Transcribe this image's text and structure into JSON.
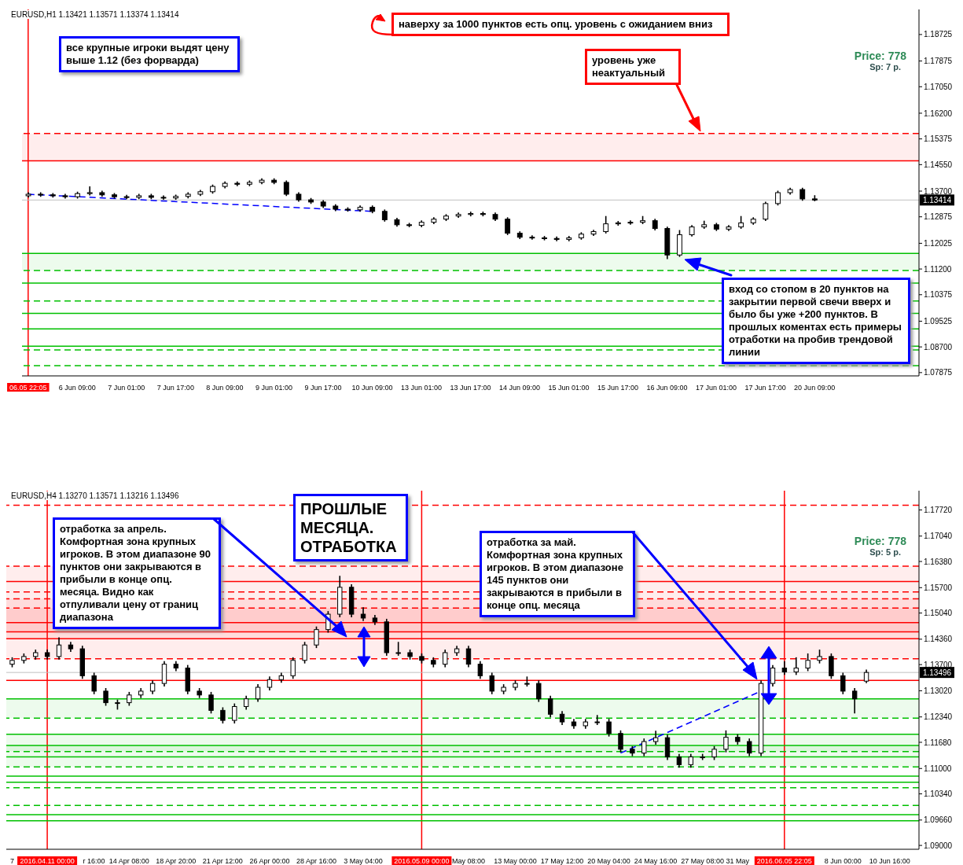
{
  "chart_data": [
    {
      "type": "candlestick",
      "title": "EURUSD,H1  1.13421 1.13571 1.13374 1.13414",
      "categories": [
        "06.05 22:05",
        null,
        null,
        null,
        "6 Jun 09:00",
        null,
        null,
        null,
        "7 Jun 01:00",
        null,
        null,
        null,
        "7 Jun 17:00",
        null,
        null,
        null,
        "8 Jun 09:00",
        null,
        null,
        null,
        "9 Jun 01:00",
        null,
        null,
        null,
        "9 Jun 17:00",
        null,
        null,
        null,
        "10 Jun 09:00",
        null,
        null,
        null,
        "13 Jun 01:00",
        null,
        null,
        null,
        "13 Jun 17:00",
        null,
        null,
        null,
        "14 Jun 09:00",
        null,
        null,
        null,
        "15 Jun 01:00",
        null,
        null,
        null,
        "15 Jun 17:00",
        null,
        null,
        null,
        "16 Jun 09:00",
        null,
        null,
        null,
        "17 Jun 01:00",
        null,
        null,
        null,
        "17 Jun 17:00",
        null,
        null,
        null,
        "20 Jun 09:00",
        null,
        null,
        null,
        null,
        null,
        null,
        null,
        null
      ],
      "ohlc": [
        [
          1.1355,
          1.1366,
          1.1349,
          1.136
        ],
        [
          1.136,
          1.1366,
          1.1352,
          1.1358
        ],
        [
          1.1358,
          1.1364,
          1.1349,
          1.1355
        ],
        [
          1.1355,
          1.1361,
          1.1346,
          1.1352
        ],
        [
          1.1352,
          1.1368,
          1.1346,
          1.1362
        ],
        [
          1.1362,
          1.1385,
          1.1356,
          1.1365
        ],
        [
          1.1365,
          1.1371,
          1.1352,
          1.1358
        ],
        [
          1.1358,
          1.1364,
          1.1346,
          1.1352
        ],
        [
          1.1352,
          1.1358,
          1.1344,
          1.135
        ],
        [
          1.135,
          1.1361,
          1.1344,
          1.1355
        ],
        [
          1.1355,
          1.1361,
          1.1344,
          1.135
        ],
        [
          1.135,
          1.1356,
          1.1342,
          1.1348
        ],
        [
          1.1348,
          1.1359,
          1.1342,
          1.1353
        ],
        [
          1.1353,
          1.1366,
          1.1347,
          1.136
        ],
        [
          1.136,
          1.1374,
          1.1354,
          1.1368
        ],
        [
          1.1368,
          1.1391,
          1.1362,
          1.1385
        ],
        [
          1.1385,
          1.1401,
          1.1379,
          1.1395
        ],
        [
          1.1395,
          1.1401,
          1.1386,
          1.1392
        ],
        [
          1.1392,
          1.1404,
          1.1386,
          1.1398
        ],
        [
          1.1398,
          1.1411,
          1.1392,
          1.1405
        ],
        [
          1.1405,
          1.1411,
          1.1392,
          1.1398
        ],
        [
          1.1398,
          1.1404,
          1.1354,
          1.136
        ],
        [
          1.136,
          1.1366,
          1.1336,
          1.1342
        ],
        [
          1.1342,
          1.1348,
          1.1329,
          1.1335
        ],
        [
          1.1335,
          1.1341,
          1.1316,
          1.1322
        ],
        [
          1.1322,
          1.1328,
          1.1306,
          1.1312
        ],
        [
          1.1312,
          1.1318,
          1.1304,
          1.131
        ],
        [
          1.131,
          1.1324,
          1.1304,
          1.1318
        ],
        [
          1.1318,
          1.1324,
          1.1299,
          1.1305
        ],
        [
          1.1305,
          1.1311,
          1.1272,
          1.1278
        ],
        [
          1.1278,
          1.1284,
          1.1256,
          1.1262
        ],
        [
          1.1262,
          1.1268,
          1.1254,
          1.126
        ],
        [
          1.126,
          1.1276,
          1.1254,
          1.127
        ],
        [
          1.127,
          1.1286,
          1.1264,
          1.128
        ],
        [
          1.128,
          1.1296,
          1.1274,
          1.129
        ],
        [
          1.129,
          1.1301,
          1.1284,
          1.1295
        ],
        [
          1.1295,
          1.1304,
          1.1289,
          1.1298
        ],
        [
          1.1298,
          1.1304,
          1.1289,
          1.1295
        ],
        [
          1.1295,
          1.1301,
          1.1274,
          1.128
        ],
        [
          1.128,
          1.1286,
          1.1229,
          1.1235
        ],
        [
          1.1235,
          1.1241,
          1.1216,
          1.1222
        ],
        [
          1.1222,
          1.1228,
          1.1214,
          1.122
        ],
        [
          1.122,
          1.1226,
          1.1212,
          1.1218
        ],
        [
          1.1218,
          1.1224,
          1.1209,
          1.1215
        ],
        [
          1.1215,
          1.1226,
          1.1209,
          1.122
        ],
        [
          1.122,
          1.1238,
          1.1214,
          1.1232
        ],
        [
          1.1232,
          1.1246,
          1.1226,
          1.124
        ],
        [
          1.124,
          1.129,
          1.1234,
          1.1265
        ],
        [
          1.1265,
          1.1274,
          1.1259,
          1.1268
        ],
        [
          1.1268,
          1.1276,
          1.1262,
          1.127
        ],
        [
          1.127,
          1.129,
          1.1264,
          1.1275
        ],
        [
          1.1275,
          1.1281,
          1.1244,
          1.125
        ],
        [
          1.125,
          1.1256,
          1.1152,
          1.1165
        ],
        [
          1.1165,
          1.1245,
          1.1159,
          1.123
        ],
        [
          1.123,
          1.1261,
          1.1224,
          1.1255
        ],
        [
          1.1255,
          1.1275,
          1.1249,
          1.1262
        ],
        [
          1.1262,
          1.1268,
          1.1242,
          1.1248
        ],
        [
          1.1248,
          1.1261,
          1.1242,
          1.1255
        ],
        [
          1.1255,
          1.129,
          1.1249,
          1.1268
        ],
        [
          1.1268,
          1.1286,
          1.1262,
          1.128
        ],
        [
          1.128,
          1.1336,
          1.1274,
          1.133
        ],
        [
          1.133,
          1.1371,
          1.1324,
          1.1365
        ],
        [
          1.1365,
          1.1381,
          1.1359,
          1.1375
        ],
        [
          1.1375,
          1.1381,
          1.1339,
          1.1345
        ],
        [
          1.1345,
          1.13571,
          1.13374,
          1.13414
        ],
        null,
        null,
        null,
        null,
        null,
        null,
        null,
        null
      ],
      "series": [
        {
          "type": "line",
          "color": "#0000ff",
          "line_style": "dashed",
          "values": [
            1.136,
            null,
            null,
            null,
            null,
            null,
            null,
            null,
            null,
            null,
            null,
            null,
            null,
            null,
            null,
            null,
            null,
            null,
            null,
            null,
            null,
            null,
            null,
            null,
            null,
            null,
            null,
            null,
            1.1305,
            null,
            null,
            null,
            null,
            null,
            null,
            null,
            null,
            null,
            null,
            null,
            null,
            null,
            null,
            null,
            null,
            null,
            null,
            null,
            null,
            null,
            null,
            null,
            null,
            null,
            null,
            null,
            null,
            null,
            null,
            null,
            null,
            null,
            null,
            null,
            null,
            null,
            null,
            null,
            null,
            null,
            null,
            null,
            null
          ]
        }
      ],
      "ylim": [
        1.0777,
        1.1953
      ],
      "yticks": [
        {
          "value": 1.18725,
          "label": "1.18725"
        },
        {
          "value": 1.17875,
          "label": "1.17875"
        },
        {
          "value": 1.1705,
          "label": "1.17050"
        },
        {
          "value": 1.162,
          "label": "1.16200"
        },
        {
          "value": 1.15375,
          "label": "1.15375"
        },
        {
          "value": 1.1455,
          "label": "1.14550"
        },
        {
          "value": 1.137,
          "label": "1.13700"
        },
        {
          "value": 1.12875,
          "label": "1.12875"
        },
        {
          "value": 1.12025,
          "label": "1.12025"
        },
        {
          "value": 1.112,
          "label": "1.11200"
        },
        {
          "value": 1.10375,
          "label": "1.10375"
        },
        {
          "value": 1.09525,
          "label": "1.09525"
        },
        {
          "value": 1.087,
          "label": "1.08700"
        },
        {
          "value": 1.07875,
          "label": "1.07875"
        }
      ],
      "bands": [
        {
          "axis": "y",
          "from": 1.1467,
          "to": 1.1555,
          "color": "#ff0000"
        },
        {
          "axis": "y",
          "from": 1.1115,
          "to": 1.117,
          "color": "#00c000"
        }
      ],
      "ref_lines": [
        {
          "axis": "x",
          "value": "06.05 22:05",
          "color": "#ff0000"
        },
        {
          "axis": "y",
          "value": 1.13414,
          "label": "1.13414",
          "color": "#c0c0c0"
        },
        {
          "axis": "y",
          "value": 1.1467,
          "color": "#ff0000",
          "line_style": "solid"
        },
        {
          "axis": "y",
          "value": 1.1555,
          "color": "#ff0000",
          "line_style": "dashed"
        },
        {
          "axis": "y",
          "value": 1.117,
          "color": "#00c000",
          "line_style": "solid"
        },
        {
          "axis": "y",
          "value": 1.1115,
          "color": "#00c000",
          "line_style": "dashed"
        },
        {
          "axis": "y",
          "value": 1.1075,
          "color": "#00c000",
          "line_style": "solid"
        },
        {
          "axis": "y",
          "value": 1.10175,
          "color": "#00c000",
          "line_style": "dashed"
        },
        {
          "axis": "y",
          "value": 1.09775,
          "color": "#00c000",
          "line_style": "solid"
        },
        {
          "axis": "y",
          "value": 1.09275,
          "color": "#00c000",
          "line_style": "solid"
        },
        {
          "axis": "y",
          "value": 1.0872,
          "color": "#00c000",
          "line_style": "solid"
        },
        {
          "axis": "y",
          "value": 1.086,
          "color": "#00c000",
          "line_style": "dashed"
        },
        {
          "axis": "y",
          "value": 1.081,
          "color": "#00c000",
          "line_style": "dashed"
        }
      ],
      "annotations": [
        "все крупные игроки выдят цену выше 1.12 (без форварда)",
        "наверху за 1000 пунктов есть опц. уровень с ожиданием вниз",
        "уровень уже неактуальный",
        "вход со стопом в 20 пунктов на закрытии первой свечи вверх и было бы уже +200 пунктов. В прошлых коментах есть примеры отработки на пробив трендовой линии",
        "Price: 778",
        "Sp: 7 p."
      ]
    },
    {
      "type": "candlestick",
      "title": "EURUSD,H4  1.13270 1.13571 1.13216 1.13496",
      "categories": [
        "7",
        null,
        null,
        "2016.04.11 00:00",
        null,
        null,
        null,
        "r 16:00",
        null,
        null,
        "14 Apr 08:00",
        null,
        null,
        null,
        "18 Apr 20:00",
        null,
        null,
        null,
        "21 Apr 12:00",
        null,
        null,
        null,
        "26 Apr 00:00",
        null,
        null,
        null,
        "28 Apr 16:00",
        null,
        null,
        null,
        "3 May 04:00",
        null,
        null,
        null,
        null,
        "2016.05.09 00:00",
        null,
        null,
        null,
        "May 08:00",
        null,
        null,
        null,
        "13 May 00:00",
        null,
        null,
        null,
        "17 May 12:00",
        null,
        null,
        null,
        "20 May 04:00",
        null,
        null,
        null,
        "24 May 16:00",
        null,
        null,
        null,
        "27 May 08:00",
        null,
        null,
        "31 May",
        null,
        null,
        null,
        "2016.06.05 22:05",
        null,
        null,
        null,
        null,
        "8 Jun 00:00",
        null,
        null,
        null,
        "10 Jun 16:00",
        null,
        null
      ],
      "ohlc": [
        [
          1.1371,
          1.1389,
          1.1363,
          1.1381
        ],
        [
          1.1381,
          1.1399,
          1.1373,
          1.1391
        ],
        [
          1.1391,
          1.1409,
          1.1383,
          1.1401
        ],
        [
          1.1401,
          1.1409,
          1.1383,
          1.1391
        ],
        [
          1.1391,
          1.1441,
          1.1383,
          1.1421
        ],
        [
          1.1421,
          1.1429,
          1.1403,
          1.1411
        ],
        [
          1.1411,
          1.1419,
          1.1333,
          1.1341
        ],
        [
          1.1341,
          1.1349,
          1.1293,
          1.1301
        ],
        [
          1.1301,
          1.1309,
          1.1263,
          1.1271
        ],
        [
          1.1271,
          1.1279,
          1.1253,
          1.1271
        ],
        [
          1.1271,
          1.1299,
          1.1263,
          1.1291
        ],
        [
          1.1291,
          1.1309,
          1.1283,
          1.1301
        ],
        [
          1.1301,
          1.1329,
          1.1293,
          1.1321
        ],
        [
          1.1321,
          1.1379,
          1.1313,
          1.1371
        ],
        [
          1.1371,
          1.1379,
          1.1353,
          1.1361
        ],
        [
          1.1361,
          1.1369,
          1.1293,
          1.1301
        ],
        [
          1.1301,
          1.1309,
          1.1283,
          1.1291
        ],
        [
          1.1291,
          1.1299,
          1.1243,
          1.1251
        ],
        [
          1.1251,
          1.1259,
          1.1217,
          1.1225
        ],
        [
          1.1225,
          1.1269,
          1.1217,
          1.1261
        ],
        [
          1.1261,
          1.1289,
          1.1253,
          1.1281
        ],
        [
          1.1281,
          1.1319,
          1.1273,
          1.1311
        ],
        [
          1.1311,
          1.1339,
          1.1303,
          1.1331
        ],
        [
          1.1331,
          1.1349,
          1.1323,
          1.1341
        ],
        [
          1.1341,
          1.1389,
          1.1333,
          1.1381
        ],
        [
          1.1381,
          1.1429,
          1.1373,
          1.1421
        ],
        [
          1.1421,
          1.1469,
          1.1413,
          1.1461
        ],
        [
          1.1461,
          1.1509,
          1.1453,
          1.1501
        ],
        [
          1.1501,
          1.1601,
          1.1493,
          1.1571
        ],
        [
          1.1571,
          1.1579,
          1.1493,
          1.1501
        ],
        [
          1.1501,
          1.1519,
          1.1483,
          1.1491
        ],
        [
          1.1491,
          1.1499,
          1.1473,
          1.1481
        ],
        [
          1.1481,
          1.1489,
          1.1393,
          1.1401
        ],
        [
          1.1401,
          1.1429,
          1.1393,
          1.1401
        ],
        [
          1.1401,
          1.1409,
          1.1383,
          1.1391
        ],
        [
          1.1391,
          1.1399,
          1.1373,
          1.1381
        ],
        [
          1.1381,
          1.1389,
          1.1363,
          1.1371
        ],
        [
          1.1371,
          1.1409,
          1.1363,
          1.1401
        ],
        [
          1.1401,
          1.1419,
          1.1393,
          1.1411
        ],
        [
          1.1411,
          1.1419,
          1.1363,
          1.1371
        ],
        [
          1.1371,
          1.1379,
          1.1333,
          1.1341
        ],
        [
          1.1341,
          1.1349,
          1.1293,
          1.1301
        ],
        [
          1.1301,
          1.1319,
          1.1293,
          1.1311
        ],
        [
          1.1311,
          1.1329,
          1.1303,
          1.1321
        ],
        [
          1.1321,
          1.1339,
          1.1313,
          1.1321
        ],
        [
          1.1321,
          1.1329,
          1.1273,
          1.1281
        ],
        [
          1.1281,
          1.1289,
          1.1233,
          1.1241
        ],
        [
          1.1241,
          1.1249,
          1.1213,
          1.1221
        ],
        [
          1.1221,
          1.1229,
          1.1203,
          1.1211
        ],
        [
          1.1211,
          1.1229,
          1.1203,
          1.1221
        ],
        [
          1.1221,
          1.1239,
          1.1213,
          1.1221
        ],
        [
          1.1221,
          1.1229,
          1.1183,
          1.1191
        ],
        [
          1.1191,
          1.1199,
          1.1142,
          1.115
        ],
        [
          1.115,
          1.1158,
          1.1132,
          1.114
        ],
        [
          1.114,
          1.1178,
          1.1132,
          1.117
        ],
        [
          1.117,
          1.1198,
          1.1162,
          1.118
        ],
        [
          1.118,
          1.1188,
          1.1122,
          1.113
        ],
        [
          1.113,
          1.1138,
          1.1102,
          1.111
        ],
        [
          1.111,
          1.1138,
          1.1102,
          1.113
        ],
        [
          1.113,
          1.1138,
          1.1122,
          1.113
        ],
        [
          1.113,
          1.1158,
          1.1122,
          1.115
        ],
        [
          1.115,
          1.1199,
          1.1142,
          1.1181
        ],
        [
          1.1181,
          1.1189,
          1.1162,
          1.117
        ],
        [
          1.117,
          1.1178,
          1.1132,
          1.114
        ],
        [
          1.114,
          1.1329,
          1.1132,
          1.1321
        ],
        [
          1.1321,
          1.1369,
          1.1313,
          1.1361
        ],
        [
          1.1361,
          1.1379,
          1.1343,
          1.1351
        ],
        [
          1.1351,
          1.1389,
          1.1343,
          1.1361
        ],
        [
          1.1361,
          1.1399,
          1.1353,
          1.1381
        ],
        [
          1.1381,
          1.1409,
          1.1373,
          1.1391
        ],
        [
          1.1391,
          1.1399,
          1.1333,
          1.1341
        ],
        [
          1.1341,
          1.1349,
          1.1293,
          1.1301
        ],
        [
          1.1301,
          1.1309,
          1.1243,
          1.1281
        ],
        [
          1.1327,
          1.13571,
          1.13216,
          1.13496
        ],
        null,
        null,
        null,
        null
      ],
      "series": [
        {
          "type": "line",
          "color": "#0000ff",
          "line_style": "dashed",
          "values": [
            null,
            null,
            null,
            null,
            null,
            null,
            null,
            null,
            null,
            null,
            null,
            null,
            null,
            null,
            null,
            null,
            null,
            null,
            null,
            null,
            null,
            null,
            null,
            null,
            null,
            null,
            null,
            null,
            null,
            null,
            null,
            null,
            null,
            null,
            null,
            null,
            null,
            null,
            null,
            null,
            null,
            null,
            null,
            null,
            null,
            null,
            null,
            null,
            null,
            null,
            null,
            null,
            1.114,
            null,
            null,
            null,
            null,
            null,
            null,
            null,
            null,
            null,
            null,
            null,
            1.1301,
            null,
            null,
            null,
            null,
            null,
            null,
            null,
            null,
            null,
            null,
            null,
            null,
            null
          ]
        }
      ],
      "ylim": [
        1.089,
        1.1822
      ],
      "yticks": [
        {
          "value": 1.1772,
          "label": "1.17720"
        },
        {
          "value": 1.1704,
          "label": "1.17040"
        },
        {
          "value": 1.1638,
          "label": "1.16380"
        },
        {
          "value": 1.157,
          "label": "1.15700"
        },
        {
          "value": 1.1504,
          "label": "1.15040"
        },
        {
          "value": 1.1436,
          "label": "1.14360"
        },
        {
          "value": 1.137,
          "label": "1.13700"
        },
        {
          "value": 1.1302,
          "label": "1.13020"
        },
        {
          "value": 1.1234,
          "label": "1.12340"
        },
        {
          "value": 1.1168,
          "label": "1.11680"
        },
        {
          "value": 1.11,
          "label": "1.11000"
        },
        {
          "value": 1.1034,
          "label": "1.10340"
        },
        {
          "value": 1.0966,
          "label": "1.09660"
        },
        {
          "value": 1.09,
          "label": "1.09000"
        }
      ],
      "bands": [
        {
          "axis": "y",
          "from": 1.1437,
          "to": 1.1626,
          "color": "#ff0000"
        },
        {
          "axis": "y",
          "from": 1.1455,
          "to": 1.1541,
          "color": "#ff0000"
        },
        {
          "axis": "y",
          "from": 1.1385,
          "to": 1.1517,
          "color": "#ff0000"
        },
        {
          "axis": "y",
          "from": 1.1231,
          "to": 1.1281,
          "color": "#00c000"
        },
        {
          "axis": "y",
          "from": 1.1144,
          "to": 1.1189,
          "color": "#00c000"
        },
        {
          "axis": "y",
          "from": 1.1104,
          "to": 1.116,
          "color": "#00c000"
        }
      ],
      "ref_lines": [
        {
          "axis": "x",
          "value": "2016.04.11 00:00",
          "color": "#ff0000"
        },
        {
          "axis": "x",
          "value": "2016.05.09 00:00",
          "color": "#ff0000"
        },
        {
          "axis": "x",
          "value": "2016.06.05 22:05",
          "color": "#ff0000"
        },
        {
          "axis": "y",
          "value": 1.13496,
          "label": "1.13496",
          "color": "#c0c0c0"
        },
        {
          "axis": "y",
          "value": 1.1784,
          "color": "#ff0000",
          "line_style": "dashed"
        },
        {
          "axis": "y",
          "value": 1.1626,
          "color": "#ff0000",
          "line_style": "dashed"
        },
        {
          "axis": "y",
          "value": 1.1586,
          "color": "#ff0000",
          "line_style": "solid"
        },
        {
          "axis": "y",
          "value": 1.1559,
          "color": "#ff0000",
          "line_style": "dashed"
        },
        {
          "axis": "y",
          "value": 1.1437,
          "color": "#ff0000",
          "line_style": "solid"
        },
        {
          "axis": "y",
          "value": 1.1541,
          "color": "#ff0000",
          "line_style": "dashed"
        },
        {
          "axis": "y",
          "value": 1.1455,
          "color": "#ff0000",
          "line_style": "solid"
        },
        {
          "axis": "y",
          "value": 1.1517,
          "color": "#ff0000",
          "line_style": "dashed"
        },
        {
          "axis": "y",
          "value": 1.1479,
          "color": "#ff0000",
          "line_style": "solid"
        },
        {
          "axis": "y",
          "value": 1.1385,
          "color": "#ff0000",
          "line_style": "dashed"
        },
        {
          "axis": "y",
          "value": 1.1329,
          "color": "#ff0000",
          "line_style": "solid"
        },
        {
          "axis": "y",
          "value": 1.1281,
          "color": "#00c000",
          "line_style": "solid"
        },
        {
          "axis": "y",
          "value": 1.1231,
          "color": "#00c000",
          "line_style": "dashed"
        },
        {
          "axis": "y",
          "value": 1.1189,
          "color": "#00c000",
          "line_style": "solid"
        },
        {
          "axis": "y",
          "value": 1.1144,
          "color": "#00c000",
          "line_style": "dashed"
        },
        {
          "axis": "y",
          "value": 1.116,
          "color": "#00c000",
          "line_style": "solid"
        },
        {
          "axis": "y",
          "value": 1.1104,
          "color": "#00c000",
          "line_style": "dashed"
        },
        {
          "axis": "y",
          "value": 1.113,
          "color": "#00c000",
          "line_style": "solid"
        },
        {
          "axis": "y",
          "value": 1.108,
          "color": "#00c000",
          "line_style": "solid"
        },
        {
          "axis": "y",
          "value": 1.105,
          "color": "#00c000",
          "line_style": "dashed"
        },
        {
          "axis": "y",
          "value": 1.1064,
          "color": "#00c000",
          "line_style": "solid"
        },
        {
          "axis": "y",
          "value": 1.1004,
          "color": "#00c000",
          "line_style": "dashed"
        },
        {
          "axis": "y",
          "value": 1.098,
          "color": "#00c000",
          "line_style": "solid"
        },
        {
          "axis": "y",
          "value": 1.0964,
          "color": "#00c000",
          "line_style": "solid"
        }
      ],
      "annotations": [
        "отработка за апрель. Комфортная зона крупных игроков. В этом диапазоне 90 пунктов они закрываются в прибыли в конце опц. месяца. Видно как отпуливали цену от границ диапазона",
        "ПРОШЛЫЕ МЕСЯЦА. ОТРАБОТКА",
        "отработка за май. Комфортная зона крупных игроков. В этом диапазоне 145 пунктов они закрываются в прибыли  в конце опц. месяца",
        "Price: 778",
        "Sp: 5 p."
      ]
    }
  ]
}
